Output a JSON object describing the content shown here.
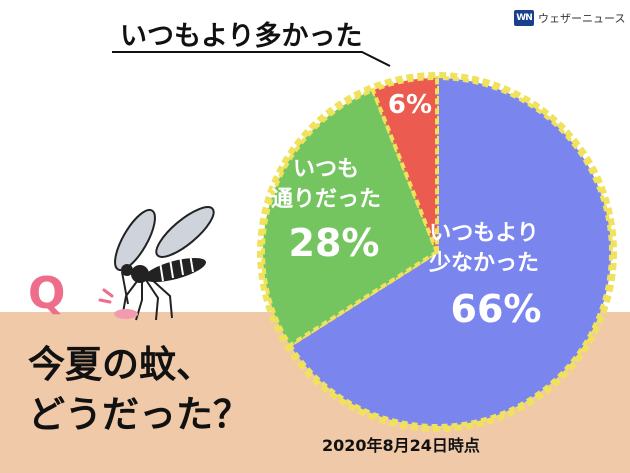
{
  "brand": {
    "logo_text": "WN",
    "name": "ウェザーニュース"
  },
  "callout_label": "いつもより多かった",
  "question": {
    "marker": "Q",
    "line1": "今夏の蚊、",
    "line2": "どうだった？"
  },
  "date_note": "2020年8月24日時点",
  "colors": {
    "less": "#7a86ee",
    "same": "#74c560",
    "more": "#ec5b4f",
    "border": "#f0e25c",
    "ground": "#efc9a8"
  },
  "chart_data": {
    "type": "pie",
    "title": "",
    "slices": [
      {
        "label_lines": [
          "いつもより",
          "少なかった"
        ],
        "value": 66,
        "display": "66%"
      },
      {
        "label_lines": [
          "いつも",
          "通りだった"
        ],
        "value": 28,
        "display": "28%"
      },
      {
        "label_lines": [],
        "value": 6,
        "display": "6%"
      }
    ]
  }
}
